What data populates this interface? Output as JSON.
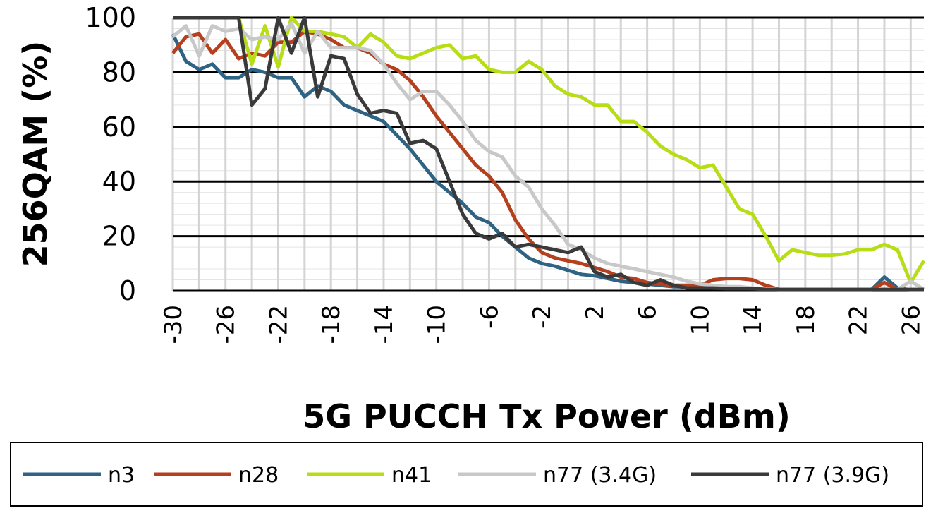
{
  "chart_data": {
    "type": "line",
    "title": "",
    "xlabel": "5G PUCCH Tx Power (dBm)",
    "ylabel": "256QAM (%)",
    "xlim": [
      -30,
      27
    ],
    "ylim": [
      0,
      100
    ],
    "yticks": [
      "0",
      "20",
      "40",
      "60",
      "80",
      "100"
    ],
    "xticks": [
      "-30",
      "-26",
      "-22",
      "-18",
      "-14",
      "-10",
      "-6",
      "-2",
      "2",
      "6",
      "10",
      "14",
      "18",
      "22",
      "26"
    ],
    "grid": true,
    "legend_position": "bottom",
    "x": [
      -30,
      -29,
      -28,
      -27,
      -26,
      -25,
      -24,
      -23,
      -22,
      -21,
      -20,
      -19,
      -18,
      -17,
      -16,
      -15,
      -14,
      -13,
      -12,
      -11,
      -10,
      -9,
      -8,
      -7,
      -6,
      -5,
      -4,
      -3,
      -2,
      -1,
      0,
      1,
      2,
      3,
      4,
      5,
      6,
      7,
      8,
      9,
      10,
      11,
      12,
      13,
      14,
      15,
      16,
      17,
      18,
      19,
      20,
      21,
      22,
      23,
      24,
      25,
      26,
      27
    ],
    "series": [
      {
        "name": "n3",
        "color": "#2e6384",
        "values": [
          94,
          84,
          81,
          83,
          78,
          78,
          81,
          80,
          78,
          78,
          71,
          75,
          73,
          68,
          66,
          64,
          62,
          57,
          52,
          46,
          40,
          36,
          32,
          27,
          25,
          20,
          16,
          12,
          10,
          9,
          7.5,
          6,
          5.5,
          4.5,
          3.5,
          3,
          2.5,
          2,
          1.5,
          1.5,
          1.5,
          1,
          1,
          1,
          0.8,
          0.6,
          0.3,
          0.3,
          0.3,
          0.3,
          0.3,
          0.3,
          0.3,
          0.3,
          5,
          1,
          0.3,
          0.3
        ]
      },
      {
        "name": "n28",
        "color": "#b5401e",
        "values": [
          87,
          93,
          94,
          87,
          92,
          85,
          87,
          86,
          91,
          91,
          95,
          94,
          92,
          89,
          89,
          87,
          83,
          81,
          77,
          71,
          64,
          58,
          52,
          46,
          42,
          36,
          26,
          19,
          14,
          12,
          11,
          10,
          8.5,
          7,
          5,
          4.5,
          3,
          2.5,
          2,
          2,
          2,
          4,
          4.5,
          4.5,
          4,
          2,
          0.5,
          0.5,
          0.5,
          0.5,
          0.5,
          0.5,
          0.5,
          0.5,
          3,
          0.5,
          0.3,
          0.3
        ]
      },
      {
        "name": "n41",
        "color": "#b7dd16",
        "values": [
          100,
          100,
          100,
          100,
          100,
          100,
          83,
          97,
          82,
          100,
          95,
          95,
          94,
          93,
          89,
          94,
          91,
          86,
          85,
          87,
          89,
          90,
          85,
          86,
          81,
          80,
          80,
          84,
          81,
          75,
          72,
          71,
          68,
          68,
          62,
          62,
          58,
          53,
          50,
          48,
          45,
          46,
          38,
          30,
          28,
          20,
          11,
          15,
          14,
          13,
          13,
          13.5,
          15,
          15,
          17,
          15,
          3,
          11
        ]
      },
      {
        "name": "n77 (3.4G)",
        "color": "#c8c8c8",
        "values": [
          93,
          97,
          86,
          97,
          95,
          96,
          92,
          93,
          92,
          98,
          87,
          95,
          89,
          89,
          89,
          88,
          83,
          76,
          70,
          73,
          73,
          68,
          62,
          55,
          51,
          49,
          42,
          38,
          30,
          24,
          17,
          15,
          12,
          10,
          9,
          8,
          7,
          6,
          5,
          3.5,
          2.5,
          2,
          1.5,
          1.5,
          1,
          0.8,
          0.5,
          0.5,
          0.5,
          0.5,
          0.5,
          0.5,
          0.5,
          0.5,
          0.5,
          0.5,
          3.5,
          0.5
        ]
      },
      {
        "name": "n77 (3.9G)",
        "color": "#3a3a3a",
        "values": [
          100,
          100,
          100,
          100,
          100,
          100,
          68,
          74,
          100,
          87,
          100,
          71,
          86,
          85,
          72,
          65,
          66,
          65,
          54,
          55,
          52,
          40,
          28,
          21,
          19,
          21,
          16,
          17,
          16,
          15,
          14,
          16,
          7,
          5,
          6,
          3,
          2,
          4,
          2,
          1,
          1,
          1,
          0.8,
          0.8,
          0.8,
          0.5,
          0.5,
          0.5,
          0.5,
          0.5,
          0.5,
          0.5,
          0.5,
          0.5,
          0.5,
          0.5,
          0.5,
          0.5
        ]
      }
    ]
  }
}
